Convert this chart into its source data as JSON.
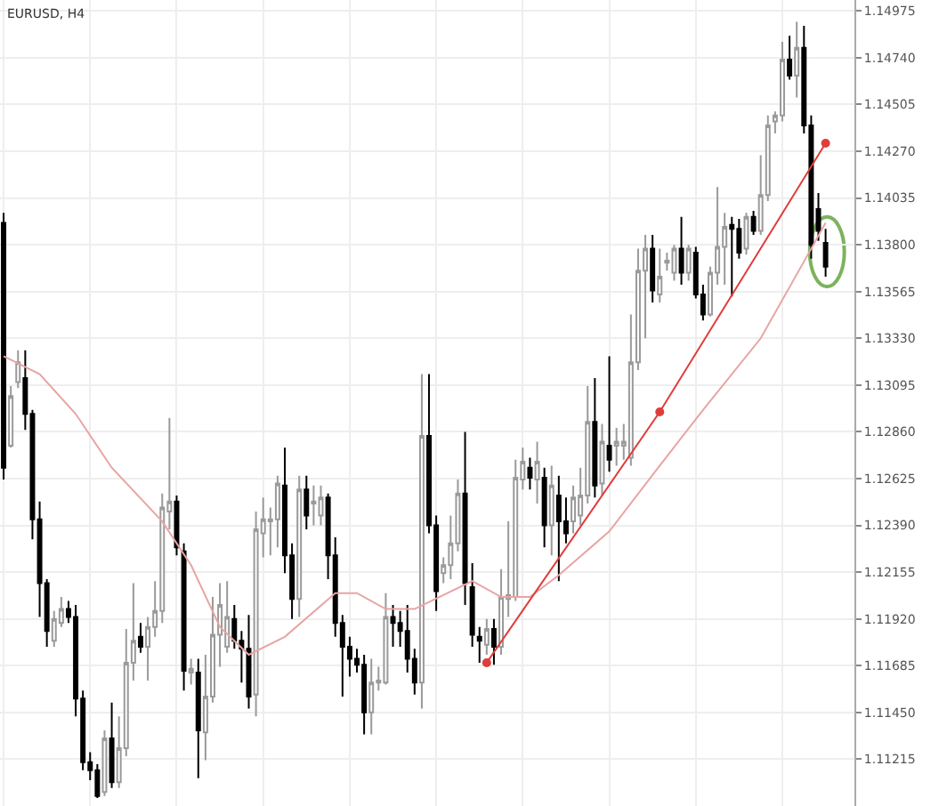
{
  "chart_data": {
    "type": "candlestick",
    "title": "EURUSD, H4",
    "categories": [
      null,
      null,
      null,
      null,
      null,
      null,
      null,
      null,
      null,
      null,
      null,
      null,
      null,
      null,
      null,
      null,
      null,
      null,
      null,
      null,
      null,
      null,
      null,
      null,
      null,
      null,
      null,
      null,
      null,
      null,
      null,
      null,
      null,
      null,
      null,
      null,
      null,
      null,
      null,
      null,
      null,
      null,
      null,
      null,
      null,
      null,
      null,
      null,
      null,
      null,
      null,
      null,
      null,
      null,
      null,
      null,
      null,
      null,
      null,
      null,
      null,
      null,
      null,
      null,
      null,
      null,
      null,
      null,
      null,
      null,
      null,
      null,
      null,
      null,
      null,
      null,
      null,
      null,
      null,
      null,
      null,
      null,
      null,
      null,
      null,
      null,
      null,
      null,
      null,
      null,
      null,
      null,
      null,
      null,
      null,
      null,
      null,
      null,
      null,
      null,
      null,
      null,
      null,
      null,
      null,
      null,
      null,
      null,
      null,
      null,
      null,
      null,
      null,
      null,
      null
    ],
    "ohlc": [
      [
        1.1391,
        1.1396,
        1.1262,
        1.1268
      ],
      [
        1.1279,
        1.1309,
        1.1278,
        1.1304
      ],
      [
        1.1311,
        1.1327,
        1.1308,
        1.1321
      ],
      [
        1.1313,
        1.1327,
        1.1287,
        1.1295
      ],
      [
        1.1295,
        1.1297,
        1.1232,
        1.1242
      ],
      [
        1.1242,
        1.1251,
        1.1193,
        1.121
      ],
      [
        1.121,
        1.1212,
        1.1178,
        1.1186
      ],
      [
        1.1181,
        1.1196,
        1.1178,
        1.1192
      ],
      [
        1.119,
        1.1203,
        1.1188,
        1.1197
      ],
      [
        1.1197,
        1.1201,
        1.119,
        1.1193
      ],
      [
        1.1193,
        1.1199,
        1.1143,
        1.1152
      ],
      [
        1.1152,
        1.1156,
        1.1116,
        1.112
      ],
      [
        1.112,
        1.1125,
        1.1111,
        1.1116
      ],
      [
        1.1116,
        1.1119,
        1.1102,
        1.1103
      ],
      [
        1.1105,
        1.1136,
        1.1103,
        1.1132
      ],
      [
        1.1132,
        1.115,
        1.1107,
        1.111
      ],
      [
        1.111,
        1.1143,
        1.1107,
        1.1127
      ],
      [
        1.1127,
        1.1187,
        1.1123,
        1.117
      ],
      [
        1.117,
        1.121,
        1.1161,
        1.1181
      ],
      [
        1.1183,
        1.119,
        1.1175,
        1.1178
      ],
      [
        1.1178,
        1.1193,
        1.1161,
        1.1188
      ],
      [
        1.1188,
        1.1211,
        1.1183,
        1.1196
      ],
      [
        1.1196,
        1.1255,
        1.119,
        1.1248
      ],
      [
        1.1246,
        1.1293,
        1.1237,
        1.1251
      ],
      [
        1.1251,
        1.1254,
        1.1224,
        1.1228
      ],
      [
        1.1226,
        1.123,
        1.1156,
        1.1166
      ],
      [
        1.1165,
        1.1172,
        1.1159,
        1.1167
      ],
      [
        1.1165,
        1.1172,
        1.1112,
        1.1136
      ],
      [
        1.1135,
        1.1174,
        1.1121,
        1.1153
      ],
      [
        1.1153,
        1.1203,
        1.115,
        1.1184
      ],
      [
        1.1184,
        1.121,
        1.1168,
        1.1199
      ],
      [
        1.1178,
        1.1211,
        1.1175,
        1.1193
      ],
      [
        1.1192,
        1.1199,
        1.1177,
        1.1181
      ],
      [
        1.1181,
        1.1186,
        1.116,
        1.1177
      ],
      [
        1.1177,
        1.1194,
        1.1147,
        1.1153
      ],
      [
        1.1154,
        1.1246,
        1.1143,
        1.1237
      ],
      [
        1.1235,
        1.1253,
        1.1223,
        1.1242
      ],
      [
        1.1241,
        1.1248,
        1.1224,
        1.1242
      ],
      [
        1.1242,
        1.1264,
        1.1228,
        1.126
      ],
      [
        1.1259,
        1.1278,
        1.1215,
        1.1224
      ],
      [
        1.1224,
        1.123,
        1.1192,
        1.1202
      ],
      [
        1.1202,
        1.1264,
        1.1193,
        1.1257
      ],
      [
        1.1257,
        1.1264,
        1.1237,
        1.1244
      ],
      [
        1.125,
        1.1259,
        1.1239,
        1.1251
      ],
      [
        1.1244,
        1.1259,
        1.1239,
        1.1253
      ],
      [
        1.1253,
        1.1255,
        1.1212,
        1.1224
      ],
      [
        1.1224,
        1.1233,
        1.1183,
        1.119
      ],
      [
        1.119,
        1.1194,
        1.1153,
        1.1178
      ],
      [
        1.1178,
        1.1183,
        1.1163,
        1.1172
      ],
      [
        1.1172,
        1.1177,
        1.1165,
        1.1169
      ],
      [
        1.1169,
        1.1174,
        1.1134,
        1.1145
      ],
      [
        1.1145,
        1.1172,
        1.1134,
        1.116
      ],
      [
        1.116,
        1.1168,
        1.1156,
        1.1161
      ],
      [
        1.116,
        1.1205,
        1.1159,
        1.1193
      ],
      [
        1.1193,
        1.1199,
        1.1178,
        1.119
      ],
      [
        1.119,
        1.1196,
        1.1178,
        1.1186
      ],
      [
        1.1186,
        1.1199,
        1.1165,
        1.1172
      ],
      [
        1.1172,
        1.1177,
        1.1154,
        1.116
      ],
      [
        1.116,
        1.1315,
        1.1147,
        1.1284
      ],
      [
        1.1284,
        1.1315,
        1.1235,
        1.1239
      ],
      [
        1.1239,
        1.1244,
        1.1196,
        1.1206
      ],
      [
        1.1215,
        1.1223,
        1.121,
        1.1219
      ],
      [
        1.1219,
        1.1244,
        1.1212,
        1.123
      ],
      [
        1.123,
        1.1262,
        1.1226,
        1.1255
      ],
      [
        1.1255,
        1.1286,
        1.1199,
        1.121
      ],
      [
        1.1208,
        1.122,
        1.1178,
        1.1184
      ],
      [
        1.1183,
        1.1188,
        1.117,
        1.1181
      ],
      [
        1.1179,
        1.1192,
        1.1174,
        1.1187
      ],
      [
        1.1187,
        1.1192,
        1.1169,
        1.1178
      ],
      [
        1.1178,
        1.1217,
        1.1174,
        1.1203
      ],
      [
        1.1202,
        1.1241,
        1.1193,
        1.1204
      ],
      [
        1.1203,
        1.1272,
        1.1201,
        1.1263
      ],
      [
        1.1262,
        1.1278,
        1.1257,
        1.1271
      ],
      [
        1.1268,
        1.1273,
        1.1257,
        1.1263
      ],
      [
        1.1262,
        1.1281,
        1.125,
        1.1271
      ],
      [
        1.1263,
        1.1268,
        1.1228,
        1.1239
      ],
      [
        1.1239,
        1.1269,
        1.1224,
        1.1259
      ],
      [
        1.1254,
        1.1264,
        1.1211,
        1.1241
      ],
      [
        1.1241,
        1.1253,
        1.123,
        1.1235
      ],
      [
        1.1241,
        1.1259,
        1.1235,
        1.1253
      ],
      [
        1.1244,
        1.1268,
        1.1239,
        1.1254
      ],
      [
        1.1254,
        1.1309,
        1.125,
        1.1291
      ],
      [
        1.1291,
        1.1313,
        1.1253,
        1.1259
      ],
      [
        1.126,
        1.129,
        1.1254,
        1.1281
      ],
      [
        1.1279,
        1.1324,
        1.1266,
        1.1272
      ],
      [
        1.1279,
        1.1288,
        1.1269,
        1.1281
      ],
      [
        1.1279,
        1.129,
        1.1272,
        1.1281
      ],
      [
        1.1273,
        1.1345,
        1.1269,
        1.1321
      ],
      [
        1.1321,
        1.1378,
        1.1317,
        1.1367
      ],
      [
        1.1367,
        1.1385,
        1.1333,
        1.1378
      ],
      [
        1.1378,
        1.1385,
        1.1351,
        1.1357
      ],
      [
        1.1355,
        1.1378,
        1.1351,
        1.1364
      ],
      [
        1.1371,
        1.1376,
        1.1367,
        1.1372
      ],
      [
        1.1366,
        1.138,
        1.1362,
        1.1378
      ],
      [
        1.1378,
        1.1394,
        1.136,
        1.1366
      ],
      [
        1.1366,
        1.138,
        1.1362,
        1.1378
      ],
      [
        1.1376,
        1.1379,
        1.1353,
        1.1355
      ],
      [
        1.1355,
        1.136,
        1.1342,
        1.1345
      ],
      [
        1.1345,
        1.1369,
        1.1344,
        1.1366
      ],
      [
        1.1366,
        1.1409,
        1.136,
        1.1379
      ],
      [
        1.1379,
        1.1396,
        1.136,
        1.1389
      ],
      [
        1.139,
        1.1394,
        1.1354,
        1.1388
      ],
      [
        1.1388,
        1.1393,
        1.1373,
        1.1376
      ],
      [
        1.1378,
        1.1396,
        1.1375,
        1.1394
      ],
      [
        1.1394,
        1.1397,
        1.1385,
        1.1387
      ],
      [
        1.1387,
        1.1425,
        1.1385,
        1.1405
      ],
      [
        1.1405,
        1.1445,
        1.1402,
        1.144
      ],
      [
        1.1442,
        1.1447,
        1.1436,
        1.1445
      ],
      [
        1.1445,
        1.1482,
        1.1442,
        1.1473
      ],
      [
        1.1473,
        1.1485,
        1.1463,
        1.1465
      ],
      [
        1.1465,
        1.1492,
        1.1454,
        1.1479
      ],
      [
        1.1479,
        1.149,
        1.1436,
        1.144
      ],
      [
        1.144,
        1.1445,
        1.1373,
        1.138
      ],
      [
        1.1398,
        1.1406,
        1.1382,
        1.1387
      ],
      [
        1.1381,
        1.1388,
        1.1364,
        1.1369
      ]
    ],
    "series": [
      {
        "type": "line",
        "color": "#e8a4a4",
        "values": [
          1.1324,
          null,
          null,
          null,
          null,
          1.1315,
          null,
          null,
          null,
          null,
          1.1295,
          null,
          null,
          null,
          null,
          1.1268,
          null,
          null,
          null,
          null,
          null,
          null,
          1.1241,
          null,
          null,
          null,
          1.1219,
          null,
          null,
          null,
          1.1188,
          null,
          null,
          null,
          1.1174,
          null,
          null,
          null,
          null,
          1.1183,
          null,
          null,
          null,
          null,
          null,
          null,
          1.1205,
          null,
          null,
          1.1205,
          null,
          null,
          null,
          1.1197,
          null,
          null,
          null,
          1.1197,
          null,
          null,
          null,
          null,
          null,
          null,
          null,
          1.1211,
          null,
          null,
          null,
          1.1203,
          null,
          null,
          null,
          1.1203,
          null,
          null,
          null,
          1.1214,
          null,
          null,
          null,
          null,
          null,
          null,
          1.1236,
          null,
          null,
          null,
          null,
          null,
          null,
          1.1269,
          null,
          null,
          null,
          null,
          null,
          1.1297,
          null,
          null,
          null,
          null,
          null,
          null,
          null,
          1.1333,
          null,
          null,
          null,
          null,
          null,
          null,
          1.1378,
          null,
          1.1391
        ]
      },
      {
        "type": "line",
        "color": "#e03c3c",
        "marker": "circle",
        "values": [
          null,
          null,
          null,
          null,
          null,
          null,
          null,
          null,
          null,
          null,
          null,
          null,
          null,
          null,
          null,
          null,
          null,
          null,
          null,
          null,
          null,
          null,
          null,
          null,
          null,
          null,
          null,
          null,
          null,
          null,
          null,
          null,
          null,
          null,
          null,
          null,
          null,
          null,
          null,
          null,
          null,
          null,
          null,
          null,
          null,
          null,
          null,
          null,
          null,
          null,
          null,
          null,
          null,
          null,
          null,
          null,
          null,
          null,
          null,
          null,
          null,
          null,
          null,
          null,
          null,
          null,
          null,
          1.117,
          null,
          null,
          null,
          null,
          null,
          null,
          null,
          null,
          null,
          null,
          null,
          null,
          null,
          null,
          null,
          null,
          null,
          null,
          null,
          null,
          null,
          null,
          null,
          1.1296,
          null,
          null,
          null,
          null,
          null,
          null,
          null,
          null,
          null,
          null,
          null,
          null,
          null,
          null,
          null,
          null,
          null,
          null,
          null,
          null,
          null,
          null,
          1.1431
        ]
      }
    ],
    "ylim": [
      1.1098,
      1.1503
    ],
    "yticks": [
      1.14975,
      {
        "value": 1.1474,
        "label": "1.14740"
      },
      1.14505,
      {
        "value": 1.1427,
        "label": "1.14270"
      },
      1.14035,
      {
        "value": 1.138,
        "label": "1.13800"
      },
      1.13565,
      {
        "value": 1.1333,
        "label": "1.13330"
      },
      1.13095,
      {
        "value": 1.1286,
        "label": "1.12860"
      },
      1.12625,
      {
        "value": 1.1239,
        "label": "1.12390"
      },
      1.12155,
      {
        "value": 1.1192,
        "label": "1.11920"
      },
      1.11685,
      {
        "value": 1.1145,
        "label": "1.11450"
      },
      1.11215
    ],
    "grid": true,
    "tick_labels": "y"
  }
}
